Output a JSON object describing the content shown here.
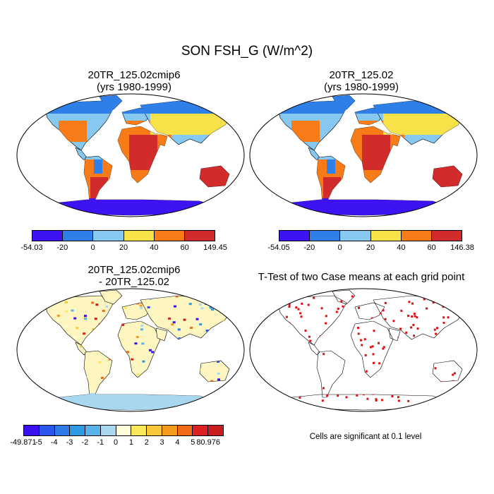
{
  "title": "SON FSH_G (W/m^2)",
  "panels": [
    {
      "id": "p1",
      "title_line1": "20TR_125.02cmip6",
      "title_line2": "(yrs 1980-1999)"
    },
    {
      "id": "p2",
      "title_line1": "20TR_125.02",
      "title_line2": "(yrs 1980-1999)"
    },
    {
      "id": "p3",
      "title_line1": "20TR_125.02cmip6",
      "title_line2": "- 20TR_125.02"
    },
    {
      "id": "p4",
      "title_line1": "T-Test of two Case means at each grid point",
      "title_line2": ""
    }
  ],
  "colorbars": {
    "cb1": {
      "colors": [
        "#3e13f3",
        "#2f7fe9",
        "#86c8f0",
        "#f7e24a",
        "#f77b16",
        "#d22b2b"
      ],
      "labels": [
        "-54.03",
        "-20",
        "0",
        "20",
        "40",
        "60",
        "149.45"
      ]
    },
    "cb2": {
      "colors": [
        "#3e13f3",
        "#2f7fe9",
        "#86c8f0",
        "#f7e24a",
        "#f77b16",
        "#d22b2b"
      ],
      "labels": [
        "-54.05",
        "-20",
        "0",
        "20",
        "40",
        "60",
        "146.38"
      ]
    },
    "cb3": {
      "colors": [
        "#3a10f0",
        "#2a56ee",
        "#2e7ae6",
        "#2f9ae4",
        "#56b4ea",
        "#a8d7f0",
        "#fffcd8",
        "#f9e85a",
        "#f8c73a",
        "#f59a1e",
        "#f06a1a",
        "#dd2020",
        "#c81d1d"
      ],
      "labels": [
        "-49.871",
        "-5",
        "-4",
        "-3",
        "-2",
        "-1",
        "0",
        "1",
        "2",
        "3",
        "4",
        "5",
        "80.976"
      ]
    }
  },
  "note": "Cells are significant at 0.1 level",
  "colors": {
    "land_default": "#86c8f0",
    "ocean": "#ffffff",
    "diff_land": "#fdf6c0",
    "significance": "#e01010"
  }
}
